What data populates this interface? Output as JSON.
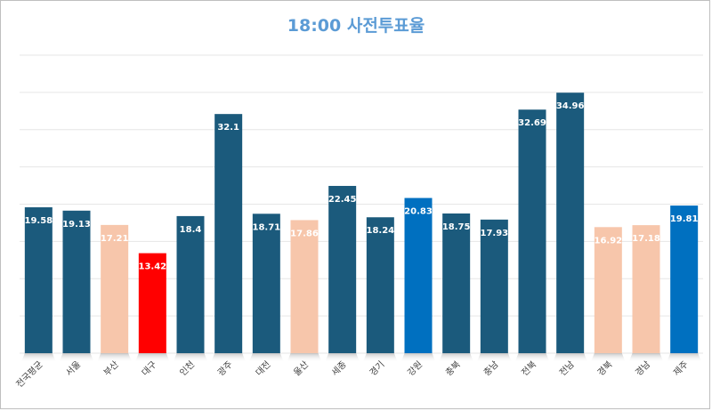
{
  "chart_data": {
    "type": "bar",
    "title": "18:00 사전투표율",
    "categories": [
      "전국평균",
      "서울",
      "부산",
      "대구",
      "인천",
      "광주",
      "대전",
      "울산",
      "세종",
      "경기",
      "강원",
      "충북",
      "충남",
      "전북",
      "전남",
      "경북",
      "경남",
      "제주"
    ],
    "values": [
      19.58,
      19.13,
      17.21,
      13.42,
      18.4,
      32.1,
      18.71,
      17.86,
      22.45,
      18.24,
      20.83,
      18.75,
      17.93,
      32.69,
      34.96,
      16.92,
      17.18,
      19.81
    ],
    "bar_colors": [
      "#1b5a7c",
      "#1b5a7c",
      "#f7c6ab",
      "#ff0000",
      "#1b5a7c",
      "#1b5a7c",
      "#1b5a7c",
      "#f7c6ab",
      "#1b5a7c",
      "#1b5a7c",
      "#0070c0",
      "#1b5a7c",
      "#1b5a7c",
      "#1b5a7c",
      "#1b5a7c",
      "#f7c6ab",
      "#f7c6ab",
      "#0070c0"
    ],
    "ylim": [
      0,
      40
    ],
    "grid": true,
    "legend": "none",
    "xlabel": "",
    "ylabel": ""
  }
}
